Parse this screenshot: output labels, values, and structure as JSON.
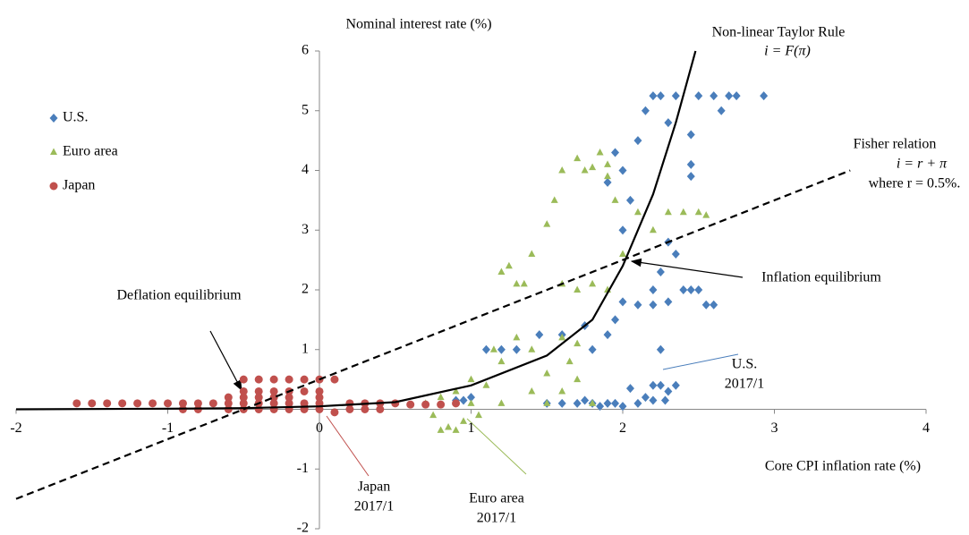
{
  "chart_data": {
    "type": "scatter",
    "x_label": "Core CPI inflation rate (%)",
    "y_label": "Nominal interest rate (%)",
    "xlim": [
      -2,
      4
    ],
    "xticks": [
      -2,
      -1,
      0,
      1,
      2,
      3,
      4
    ],
    "ylim": [
      -2,
      6
    ],
    "yticks": [
      -2,
      -1,
      0,
      1,
      2,
      3,
      4,
      5,
      6
    ],
    "series": [
      {
        "name": "U.S.",
        "color": "#4a7ebb",
        "marker": "diamond",
        "x": [
          0.9,
          0.95,
          1.0,
          1.1,
          1.2,
          1.3,
          1.45,
          1.6,
          1.75,
          1.8,
          1.9,
          1.95,
          2.0,
          2.1,
          2.2,
          2.3,
          2.4,
          2.45,
          2.5,
          2.55,
          2.6,
          2.2,
          2.25,
          2.3,
          2.35,
          2.0,
          2.05,
          2.0,
          2.1,
          2.15,
          2.2,
          2.25,
          2.35,
          2.5,
          2.6,
          2.7,
          2.75,
          2.93,
          2.65,
          2.45,
          2.45,
          2.45,
          2.3,
          1.95,
          1.9,
          2.0,
          2.1,
          2.15,
          2.2,
          2.25,
          2.3,
          2.35,
          2.2,
          2.25,
          1.5,
          1.6,
          1.7,
          1.8,
          1.9,
          1.75,
          1.85,
          1.95,
          2.05,
          2.28
        ],
        "y": [
          0.15,
          0.15,
          0.2,
          1.0,
          1.0,
          1.0,
          1.25,
          1.25,
          1.4,
          1.0,
          1.25,
          1.5,
          1.8,
          1.75,
          1.75,
          1.8,
          2.0,
          2.0,
          2.0,
          1.75,
          1.75,
          2.0,
          2.3,
          2.8,
          2.6,
          3.0,
          3.5,
          4.0,
          4.5,
          5.0,
          5.25,
          5.25,
          5.25,
          5.25,
          5.25,
          5.25,
          5.25,
          5.25,
          5.0,
          4.6,
          4.1,
          3.9,
          4.8,
          4.3,
          3.8,
          0.05,
          0.1,
          0.2,
          0.4,
          0.4,
          0.3,
          0.4,
          0.15,
          1.0,
          0.1,
          0.1,
          0.1,
          0.1,
          0.1,
          0.15,
          0.05,
          0.1,
          0.35,
          0.15
        ]
      },
      {
        "name": "Euro area",
        "color": "#9bbb59",
        "marker": "triangle",
        "x": [
          0.7,
          0.8,
          0.9,
          0.85,
          0.9,
          0.8,
          0.95,
          1.0,
          1.0,
          1.1,
          1.2,
          1.15,
          1.2,
          1.3,
          1.25,
          1.35,
          1.4,
          1.5,
          1.55,
          1.6,
          1.7,
          1.75,
          1.8,
          1.85,
          1.9,
          1.9,
          1.95,
          1.6,
          1.7,
          1.8,
          1.9,
          2.0,
          2.1,
          2.2,
          2.3,
          2.4,
          2.5,
          2.55,
          1.5,
          1.6,
          1.7,
          1.8,
          1.4,
          1.3,
          1.6,
          1.7,
          1.2,
          1.4,
          1.5,
          1.65,
          0.75,
          1.05
        ],
        "y": [
          0.1,
          0.2,
          0.3,
          -0.3,
          -0.35,
          -0.35,
          -0.2,
          0.1,
          0.5,
          0.4,
          0.8,
          1.0,
          2.3,
          2.1,
          2.4,
          2.1,
          2.6,
          3.1,
          3.5,
          4.0,
          4.2,
          4.0,
          4.05,
          4.3,
          3.9,
          4.1,
          3.5,
          2.1,
          2.0,
          2.1,
          2.0,
          2.6,
          3.3,
          3.0,
          3.3,
          3.3,
          3.3,
          3.25,
          0.6,
          0.3,
          0.5,
          0.1,
          1.0,
          1.2,
          1.2,
          1.1,
          0.1,
          0.3,
          0.1,
          0.8,
          -0.1,
          -0.1
        ]
      },
      {
        "name": "Japan",
        "color": "#c0504d",
        "marker": "circle",
        "x": [
          -1.6,
          -1.5,
          -1.4,
          -1.3,
          -1.2,
          -1.1,
          -1.0,
          -0.9,
          -0.8,
          -0.7,
          -0.6,
          -0.5,
          -0.4,
          -0.3,
          -0.2,
          -0.1,
          0,
          0.2,
          0.3,
          0.4,
          0.5,
          0.6,
          0.7,
          0.8,
          0.9,
          -0.5,
          -0.4,
          -0.3,
          -0.2,
          -0.1,
          0,
          0.1,
          -0.5,
          -0.4,
          -0.3,
          -0.2,
          -0.1,
          0,
          -0.6,
          -0.5,
          -0.4,
          -0.3,
          -0.2,
          0,
          -0.9,
          -0.8,
          -0.6,
          -0.5,
          -0.4,
          -0.3,
          -0.2,
          -0.1,
          0,
          0.2,
          0.3,
          0.4,
          0.1
        ],
        "y": [
          0.1,
          0.1,
          0.1,
          0.1,
          0.1,
          0.1,
          0.1,
          0.1,
          0.1,
          0.1,
          0.1,
          0.1,
          0.1,
          0.1,
          0.1,
          0.1,
          0.1,
          0.1,
          0.1,
          0.1,
          0.1,
          0.08,
          0.08,
          0.08,
          0.1,
          0.5,
          0.5,
          0.5,
          0.5,
          0.5,
          0.5,
          0.5,
          0.3,
          0.3,
          0.3,
          0.3,
          0.3,
          0.3,
          0.2,
          0.2,
          0.2,
          0.2,
          0.2,
          0.2,
          0,
          0,
          0,
          0,
          0,
          0,
          0,
          0,
          0,
          0,
          0,
          0,
          -0.05
        ]
      }
    ],
    "lines": [
      {
        "color": "#000000",
        "dash": false,
        "x": [
          -2,
          -1,
          -0.5,
          0,
          0.5,
          1,
          1.5,
          1.8,
          2,
          2.2,
          2.35,
          2.48
        ],
        "y": [
          0,
          0.01,
          0.02,
          0.05,
          0.12,
          0.4,
          0.9,
          1.5,
          2.4,
          3.6,
          4.8,
          6
        ]
      },
      {
        "color": "#000000",
        "dash": true,
        "x": [
          -2,
          3.5
        ],
        "y": [
          -1.5,
          4.0
        ]
      }
    ],
    "annotations": [
      "Non-linear Taylor Rule",
      "i = F(π)",
      "Fisher relation",
      "i = r + π",
      "where r = 0.5%.",
      "Inflation equilibrium",
      "Deflation equilibrium",
      "U.S.",
      "2017/1",
      "Japan",
      "2017/1",
      "Euro area",
      "2017/1"
    ]
  }
}
